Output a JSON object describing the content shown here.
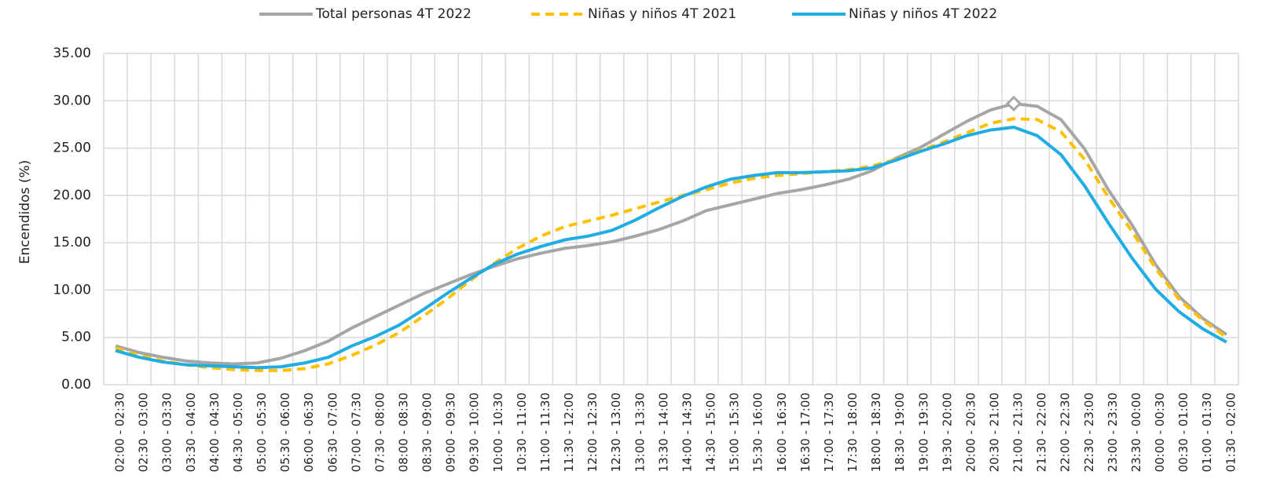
{
  "chart_data": {
    "type": "line",
    "y_label": "Encendidos (%)",
    "categories": [
      "02:00 - 02:30",
      "02:30 - 03:00",
      "03:00 - 03:30",
      "03:30 - 04:00",
      "04:00 - 04:30",
      "04:30 - 05:00",
      "05:00 - 05:30",
      "05:30 - 06:00",
      "06:00 - 06:30",
      "06:30 - 07:00",
      "07:00 - 07:30",
      "07:30 - 08:00",
      "08:00 - 08:30",
      "08:30 - 09:00",
      "09:00 - 09:30",
      "09:30 - 10:00",
      "10:00 - 10:30",
      "10:30 - 11:00",
      "11:00 - 11:30",
      "11:30 - 12:00",
      "12:00 - 12:30",
      "12:30 - 13:00",
      "13:00 - 13:30",
      "13:30 - 14:00",
      "14:00 - 14:30",
      "14:30 - 15:00",
      "15:00 - 15:30",
      "15:30 - 16:00",
      "16:00 - 16:30",
      "16:30 - 17:00",
      "17:00 - 17:30",
      "17:30 - 18:00",
      "18:00 - 18:30",
      "18:30 - 19:00",
      "19:00 - 19:30",
      "19:30 - 20:00",
      "20:00 - 20:30",
      "20:30 - 21:00",
      "21:00 - 21:30",
      "21:30 - 22:00",
      "22:00 - 22:30",
      "22:30 - 23:00",
      "23:00 - 23:30",
      "23:30 - 00:00",
      "00:00 - 00:30",
      "00:30 - 01:00",
      "01:00 - 01:30",
      "01:30 - 02:00"
    ],
    "series": [
      {
        "name": "Total personas 4T 2022",
        "color": "#a6a6a6",
        "dashed": false,
        "marker_index": 38,
        "values": [
          4.1,
          3.4,
          2.9,
          2.5,
          2.3,
          2.2,
          2.3,
          2.8,
          3.6,
          4.6,
          6.0,
          7.2,
          8.4,
          9.6,
          10.6,
          11.6,
          12.5,
          13.3,
          13.9,
          14.4,
          14.7,
          15.1,
          15.7,
          16.4,
          17.3,
          18.4,
          19.0,
          19.6,
          20.2,
          20.6,
          21.1,
          21.7,
          22.6,
          23.9,
          25.0,
          26.4,
          27.8,
          29.0,
          29.7,
          29.4,
          28.0,
          24.9,
          20.6,
          16.9,
          12.7,
          9.3,
          7.0,
          5.3
        ]
      },
      {
        "name": "Niñas y niños 4T 2021",
        "color": "#ffc000",
        "dashed": true,
        "values": [
          3.9,
          3.1,
          2.5,
          2.1,
          1.8,
          1.6,
          1.5,
          1.5,
          1.7,
          2.2,
          3.1,
          4.2,
          5.5,
          7.2,
          9.0,
          11.0,
          12.8,
          14.4,
          15.7,
          16.7,
          17.3,
          17.9,
          18.6,
          19.3,
          20.0,
          20.6,
          21.3,
          21.8,
          22.1,
          22.3,
          22.5,
          22.7,
          23.1,
          23.8,
          24.7,
          25.6,
          26.6,
          27.6,
          28.1,
          28.0,
          26.7,
          23.8,
          19.8,
          16.2,
          12.3,
          9.0,
          6.8,
          5.0
        ]
      },
      {
        "name": "Niñas y niños 4T 2022",
        "color": "#1fade4",
        "dashed": false,
        "values": [
          3.6,
          2.9,
          2.4,
          2.1,
          2.0,
          1.9,
          1.8,
          1.9,
          2.3,
          2.9,
          4.1,
          5.1,
          6.3,
          7.9,
          9.6,
          11.2,
          12.7,
          13.8,
          14.6,
          15.3,
          15.7,
          16.3,
          17.4,
          18.7,
          19.9,
          20.9,
          21.7,
          22.1,
          22.4,
          22.4,
          22.5,
          22.6,
          22.9,
          23.7,
          24.6,
          25.4,
          26.3,
          26.9,
          27.2,
          26.3,
          24.3,
          21.0,
          17.1,
          13.4,
          10.1,
          7.7,
          5.9,
          4.5
        ]
      }
    ],
    "ylim": [
      0,
      35
    ],
    "yticks": [
      {
        "value": 0,
        "label": "0.00"
      },
      {
        "value": 5,
        "label": "5.00"
      },
      {
        "value": 10,
        "label": "10.00"
      },
      {
        "value": 15,
        "label": "15.00"
      },
      {
        "value": 20,
        "label": "20.00"
      },
      {
        "value": 25,
        "label": "25.00"
      },
      {
        "value": 30,
        "label": "30.00"
      },
      {
        "value": 35,
        "label": "35.00"
      }
    ],
    "grid": true,
    "legend": "top"
  }
}
